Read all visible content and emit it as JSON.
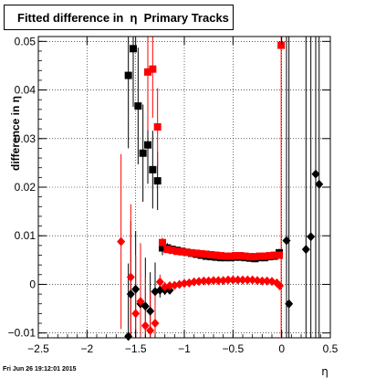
{
  "chart_data": {
    "type": "scatter",
    "title": "Fitted difference in  η  Primary Tracks",
    "xlabel": "η",
    "ylabel": "difference in η",
    "xlim": [
      -2.5,
      0.5
    ],
    "ylim": [
      -0.011,
      0.051
    ],
    "x_ticks": [
      -2.5,
      -2,
      -1.5,
      -1,
      -0.5,
      0,
      0.5
    ],
    "x_tick_labels": [
      "−2.5",
      "−2",
      "−1.5",
      "−1",
      "−0.5",
      "0",
      "0.5"
    ],
    "y_ticks": [
      -0.01,
      0,
      0.01,
      0.02,
      0.03,
      0.04,
      0.05
    ],
    "y_tick_labels": [
      "−0.01",
      "0",
      "0.01",
      "0.02",
      "0.03",
      "0.04",
      "0.05"
    ],
    "grid": true,
    "footer": "Fri Jun 26 19:12:01 2015",
    "colors": {
      "black_series": "#000000",
      "red_series": "#ff0000"
    },
    "series": [
      {
        "marker": "square",
        "color": "#000000",
        "points": [
          {
            "x": -1.575,
            "y": 0.043,
            "err": 0.015
          },
          {
            "x": -1.525,
            "y": 0.0485,
            "err": 0.012
          },
          {
            "x": -1.475,
            "y": 0.0367,
            "err": 0.012
          },
          {
            "x": -1.425,
            "y": 0.027,
            "err": 0.01
          },
          {
            "x": -1.375,
            "y": 0.0287,
            "err": 0.008
          },
          {
            "x": -1.325,
            "y": 0.0236,
            "err": 0.008
          },
          {
            "x": -1.275,
            "y": 0.0213,
            "err": 0.006
          },
          {
            "x": -1.225,
            "y": 0.0075,
            "err": 0.0015
          },
          {
            "x": -1.175,
            "y": 0.0075,
            "err": 0.001
          },
          {
            "x": -1.125,
            "y": 0.0072,
            "err": 0.0008
          },
          {
            "x": -1.075,
            "y": 0.007,
            "err": 0.0006
          },
          {
            "x": -1.025,
            "y": 0.0068,
            "err": 0.0005
          },
          {
            "x": -0.975,
            "y": 0.0066,
            "err": 0.0005
          },
          {
            "x": -0.925,
            "y": 0.0064,
            "err": 0.0005
          },
          {
            "x": -0.875,
            "y": 0.0062,
            "err": 0.0005
          },
          {
            "x": -0.825,
            "y": 0.006,
            "err": 0.0005
          },
          {
            "x": -0.775,
            "y": 0.0058,
            "err": 0.0005
          },
          {
            "x": -0.725,
            "y": 0.0057,
            "err": 0.0005
          },
          {
            "x": -0.675,
            "y": 0.0056,
            "err": 0.0005
          },
          {
            "x": -0.625,
            "y": 0.0055,
            "err": 0.0005
          },
          {
            "x": -0.575,
            "y": 0.0055,
            "err": 0.0005
          },
          {
            "x": -0.525,
            "y": 0.0055,
            "err": 0.0005
          },
          {
            "x": -0.475,
            "y": 0.0056,
            "err": 0.0005
          },
          {
            "x": -0.425,
            "y": 0.0056,
            "err": 0.0005
          },
          {
            "x": -0.375,
            "y": 0.0055,
            "err": 0.0005
          },
          {
            "x": -0.325,
            "y": 0.0054,
            "err": 0.0005
          },
          {
            "x": -0.275,
            "y": 0.0053,
            "err": 0.0005
          },
          {
            "x": -0.225,
            "y": 0.0055,
            "err": 0.0005
          },
          {
            "x": -0.175,
            "y": 0.0055,
            "err": 0.0005
          },
          {
            "x": -0.125,
            "y": 0.0057,
            "err": 0.0005
          },
          {
            "x": -0.075,
            "y": 0.0058,
            "err": 0.0005
          },
          {
            "x": -0.025,
            "y": 0.0065,
            "err": 0.0008
          }
        ]
      },
      {
        "marker": "square",
        "color": "#ff0000",
        "points": [
          {
            "x": -1.375,
            "y": 0.0437,
            "err": 0.012
          },
          {
            "x": -1.325,
            "y": 0.0443,
            "err": 0.01
          },
          {
            "x": -1.275,
            "y": 0.0324,
            "err": 0.008
          },
          {
            "x": -1.225,
            "y": 0.0086,
            "err": 0.001
          },
          {
            "x": -1.175,
            "y": 0.0072,
            "err": 0.0008
          },
          {
            "x": -1.125,
            "y": 0.007,
            "err": 0.0006
          },
          {
            "x": -1.075,
            "y": 0.0068,
            "err": 0.0006
          },
          {
            "x": -1.025,
            "y": 0.0067,
            "err": 0.0005
          },
          {
            "x": -0.975,
            "y": 0.0066,
            "err": 0.0005
          },
          {
            "x": -0.925,
            "y": 0.0065,
            "err": 0.0005
          },
          {
            "x": -0.875,
            "y": 0.0064,
            "err": 0.0005
          },
          {
            "x": -0.825,
            "y": 0.0063,
            "err": 0.0005
          },
          {
            "x": -0.775,
            "y": 0.0062,
            "err": 0.0005
          },
          {
            "x": -0.725,
            "y": 0.0061,
            "err": 0.0005
          },
          {
            "x": -0.675,
            "y": 0.006,
            "err": 0.0005
          },
          {
            "x": -0.625,
            "y": 0.0059,
            "err": 0.0005
          },
          {
            "x": -0.575,
            "y": 0.0058,
            "err": 0.0005
          },
          {
            "x": -0.525,
            "y": 0.0058,
            "err": 0.0005
          },
          {
            "x": -0.475,
            "y": 0.0059,
            "err": 0.0005
          },
          {
            "x": -0.425,
            "y": 0.0059,
            "err": 0.0005
          },
          {
            "x": -0.375,
            "y": 0.0058,
            "err": 0.0005
          },
          {
            "x": -0.325,
            "y": 0.0057,
            "err": 0.0005
          },
          {
            "x": -0.275,
            "y": 0.0057,
            "err": 0.0005
          },
          {
            "x": -0.225,
            "y": 0.0058,
            "err": 0.0005
          },
          {
            "x": -0.175,
            "y": 0.0058,
            "err": 0.0005
          },
          {
            "x": -0.125,
            "y": 0.0059,
            "err": 0.0005
          },
          {
            "x": -0.075,
            "y": 0.006,
            "err": 0.0005
          },
          {
            "x": -0.025,
            "y": 0.006,
            "err": 0.0005
          },
          {
            "x": -0.005,
            "y": 0.0492,
            "err": 0.06
          }
        ]
      },
      {
        "marker": "diamond",
        "color": "#000000",
        "points": [
          {
            "x": -1.575,
            "y": -0.0107,
            "err": 0.015
          },
          {
            "x": -1.55,
            "y": -0.002,
            "err": 0.015
          },
          {
            "x": -1.5,
            "y": -0.001,
            "err": 0.012
          },
          {
            "x": -1.45,
            "y": -0.004,
            "err": 0.012
          },
          {
            "x": -1.4,
            "y": -0.0045,
            "err": 0.01
          },
          {
            "x": -1.35,
            "y": -0.0055,
            "err": 0.008
          },
          {
            "x": -1.3,
            "y": -0.0015,
            "err": 0.006
          },
          {
            "x": -1.25,
            "y": -0.0012,
            "err": 0.0015
          },
          {
            "x": -1.2,
            "y": -0.0012,
            "err": 0.001
          },
          {
            "x": -1.15,
            "y": -0.0012,
            "err": 0.0008
          },
          {
            "x": 0.05,
            "y": 0.009,
            "err": 0.06
          },
          {
            "x": 0.075,
            "y": -0.004,
            "err": 0.06
          },
          {
            "x": 0.25,
            "y": 0.0072,
            "err": 0.06
          },
          {
            "x": 0.3,
            "y": 0.0098,
            "err": 0.06
          },
          {
            "x": 0.35,
            "y": 0.0227,
            "err": 0.06
          },
          {
            "x": 0.385,
            "y": 0.0206,
            "err": 0.06
          }
        ]
      },
      {
        "marker": "diamond",
        "color": "#ff0000",
        "points": [
          {
            "x": -1.65,
            "y": 0.0088,
            "err": 0.018
          },
          {
            "x": -1.55,
            "y": 0.0015,
            "err": 0.015
          },
          {
            "x": -1.5,
            "y": -0.006,
            "err": 0.012
          },
          {
            "x": -1.45,
            "y": -0.0035,
            "err": 0.012
          },
          {
            "x": -1.4,
            "y": -0.0085,
            "err": 0.01
          },
          {
            "x": -1.35,
            "y": -0.0095,
            "err": 0.008
          },
          {
            "x": -1.3,
            "y": -0.008,
            "err": 0.006
          },
          {
            "x": -1.25,
            "y": 0.0005,
            "err": 0.0015
          },
          {
            "x": -1.2,
            "y": -0.0005,
            "err": 0.001
          },
          {
            "x": -1.15,
            "y": -0.0003,
            "err": 0.0008
          },
          {
            "x": -1.1,
            "y": -0.0002,
            "err": 0.0006
          },
          {
            "x": -1.05,
            "y": 0.0,
            "err": 0.0005
          },
          {
            "x": -1.0,
            "y": 0.0002,
            "err": 0.0005
          },
          {
            "x": -0.95,
            "y": 0.0003,
            "err": 0.0005
          },
          {
            "x": -0.9,
            "y": 0.0005,
            "err": 0.0005
          },
          {
            "x": -0.85,
            "y": 0.0006,
            "err": 0.0005
          },
          {
            "x": -0.8,
            "y": 0.0007,
            "err": 0.0005
          },
          {
            "x": -0.75,
            "y": 0.0007,
            "err": 0.0005
          },
          {
            "x": -0.7,
            "y": 0.0008,
            "err": 0.0005
          },
          {
            "x": -0.65,
            "y": 0.0008,
            "err": 0.0005
          },
          {
            "x": -0.6,
            "y": 0.0008,
            "err": 0.0005
          },
          {
            "x": -0.55,
            "y": 0.0009,
            "err": 0.0005
          },
          {
            "x": -0.5,
            "y": 0.0009,
            "err": 0.0005
          },
          {
            "x": -0.45,
            "y": 0.0009,
            "err": 0.0005
          },
          {
            "x": -0.4,
            "y": 0.0009,
            "err": 0.0005
          },
          {
            "x": -0.35,
            "y": 0.0009,
            "err": 0.0005
          },
          {
            "x": -0.3,
            "y": 0.0009,
            "err": 0.0005
          },
          {
            "x": -0.25,
            "y": 0.0008,
            "err": 0.0005
          },
          {
            "x": -0.2,
            "y": 0.0007,
            "err": 0.0005
          },
          {
            "x": -0.15,
            "y": 0.0007,
            "err": 0.0005
          },
          {
            "x": -0.1,
            "y": 0.0006,
            "err": 0.0005
          },
          {
            "x": -0.05,
            "y": 0.0003,
            "err": 0.0005
          },
          {
            "x": -0.02,
            "y": -0.0003,
            "err": 0.0006
          }
        ]
      }
    ]
  }
}
